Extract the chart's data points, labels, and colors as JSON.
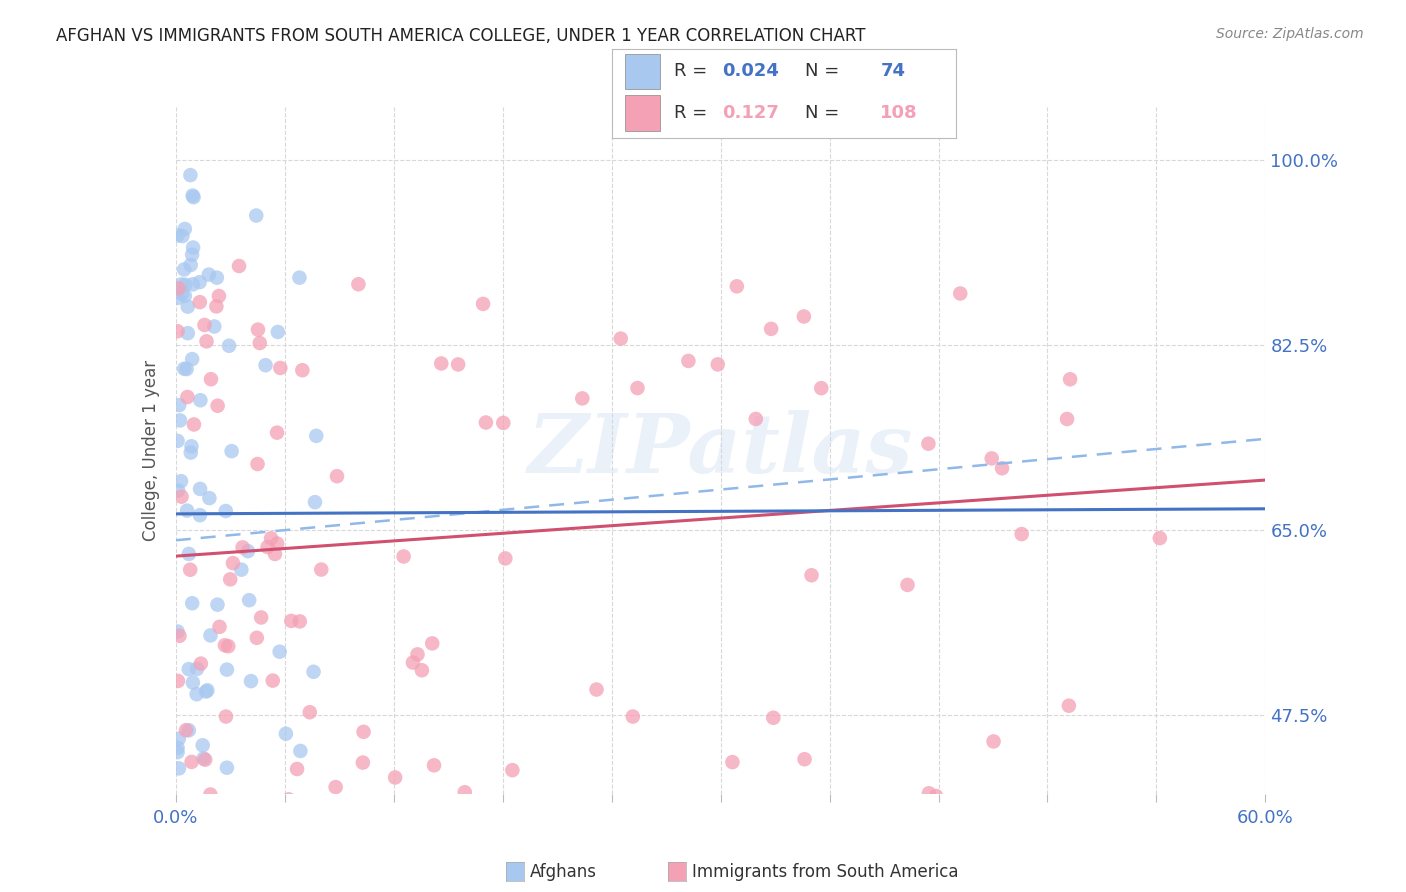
{
  "title": "AFGHAN VS IMMIGRANTS FROM SOUTH AMERICA COLLEGE, UNDER 1 YEAR CORRELATION CHART",
  "source": "Source: ZipAtlas.com",
  "ylabel": "College, Under 1 year",
  "xlim": [
    0.0,
    0.6
  ],
  "ylim": [
    0.4,
    1.05
  ],
  "yticks": [
    0.475,
    0.65,
    0.825,
    1.0
  ],
  "ytick_labels": [
    "47.5%",
    "65.0%",
    "82.5%",
    "100.0%"
  ],
  "legend_R1": "0.024",
  "legend_N1": "74",
  "legend_R2": "0.127",
  "legend_N2": "108",
  "color_afghan": "#a8c8f0",
  "color_sa": "#f4a0b5",
  "trend_color_afghan": "#4472c4",
  "trend_color_sa": "#d05070",
  "trend_color_afghan_dashed": "#90b8e8",
  "background_color": "#ffffff",
  "grid_color": "#d8d8d8",
  "title_color": "#222222",
  "source_color": "#888888",
  "axis_label_color": "#555555",
  "tick_color": "#4472c4",
  "watermark_text": "ZIPatlas",
  "watermark_color": "#c5d8f0",
  "watermark_alpha": 0.35
}
